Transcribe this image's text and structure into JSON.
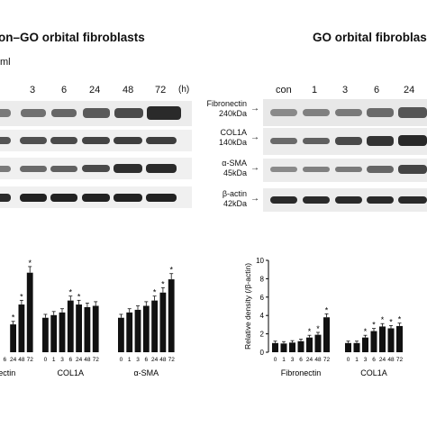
{
  "left": {
    "title": "on–GO orbital fibroblasts",
    "conc": "ml",
    "lanes": [
      "3",
      "6",
      "24",
      "48",
      "72"
    ],
    "unit": "(h)"
  },
  "right": {
    "title": "GO orbital fibroblas",
    "lanes": [
      "con",
      "1",
      "3",
      "6",
      "24"
    ]
  },
  "markers": [
    {
      "name": "Fibronectin",
      "size": "240kDa"
    },
    {
      "name": "COL1A",
      "size": "140kDa"
    },
    {
      "name": "α-SMA",
      "size": "45kDa"
    },
    {
      "name": "β-actin",
      "size": "42kDa"
    }
  ],
  "chart_data": [
    {
      "type": "bar",
      "groups": [
        "nectin",
        "COL1A",
        "α-SMA"
      ],
      "categories": [
        "0",
        "1",
        "3",
        "6",
        "24",
        "48",
        "72"
      ],
      "series": [
        {
          "group": "nectin",
          "values": [
            null,
            null,
            null,
            null,
            2.1,
            3.6,
            6.0
          ],
          "significant": [
            false,
            false,
            false,
            false,
            true,
            true,
            true
          ]
        },
        {
          "group": "COL1A",
          "values": [
            2.6,
            2.8,
            3.0,
            3.9,
            3.6,
            3.4,
            3.5
          ],
          "significant": [
            false,
            false,
            false,
            true,
            true,
            false,
            false
          ]
        },
        {
          "group": "α-SMA",
          "values": [
            2.6,
            3.0,
            3.2,
            3.5,
            3.9,
            4.5,
            5.5
          ],
          "significant": [
            false,
            false,
            false,
            false,
            true,
            true,
            true
          ]
        }
      ],
      "ylim": [
        0,
        7
      ]
    },
    {
      "type": "bar",
      "groups": [
        "Fibronectin",
        "COL1A"
      ],
      "categories": [
        "0",
        "1",
        "3",
        "6",
        "24",
        "48",
        "72"
      ],
      "series": [
        {
          "group": "Fibronectin",
          "values": [
            1.0,
            0.95,
            1.05,
            1.2,
            1.6,
            1.9,
            3.8
          ],
          "significant": [
            false,
            false,
            false,
            false,
            true,
            true,
            true
          ]
        },
        {
          "group": "COL1A",
          "values": [
            1.0,
            1.0,
            1.6,
            2.3,
            2.8,
            2.6,
            2.85
          ],
          "significant": [
            false,
            false,
            true,
            true,
            true,
            true,
            true
          ]
        }
      ],
      "ylabel": "Relative density (/β-actin)",
      "ylim": [
        0,
        10
      ],
      "yticks": [
        0,
        2,
        4,
        6,
        8,
        10
      ]
    }
  ]
}
